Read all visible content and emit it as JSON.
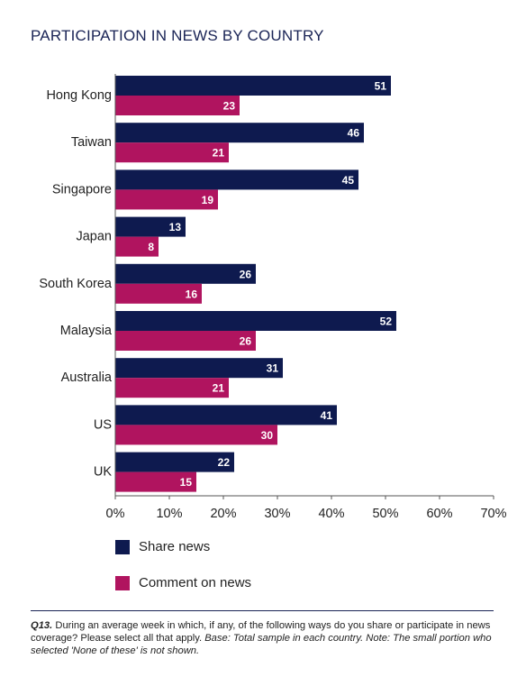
{
  "colors": {
    "share": "#0e1a4f",
    "comment": "#b0145f",
    "axis": "#555555",
    "title": "#1a2456"
  },
  "chart_data": {
    "type": "bar",
    "orientation": "horizontal",
    "title": "PARTICIPATION IN NEWS BY COUNTRY",
    "categories": [
      "Hong Kong",
      "Taiwan",
      "Singapore",
      "Japan",
      "South Korea",
      "Malaysia",
      "Australia",
      "US",
      "UK"
    ],
    "series": [
      {
        "name": "Share news",
        "values": [
          51,
          46,
          45,
          13,
          26,
          52,
          31,
          41,
          22
        ]
      },
      {
        "name": "Comment on news",
        "values": [
          23,
          21,
          19,
          8,
          16,
          26,
          21,
          30,
          15
        ]
      }
    ],
    "xlim": [
      0,
      70
    ],
    "xticks": [
      "0%",
      "10%",
      "20%",
      "30%",
      "40%",
      "50%",
      "60%",
      "70%"
    ],
    "xtick_values": [
      0,
      10,
      20,
      30,
      40,
      50,
      60,
      70
    ],
    "grid": false,
    "legend_position": "bottom-left"
  },
  "footnote": {
    "question": "Q13.",
    "text": " During an average week in which, if any, of the following ways do you share or participate in news coverage? Please select all that apply. ",
    "note": "Base: Total sample in each country. Note: The small portion who selected 'None of these' is not shown."
  }
}
